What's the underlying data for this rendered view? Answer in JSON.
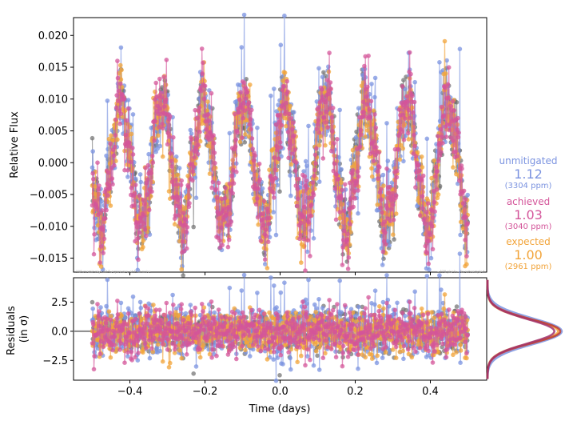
{
  "chart_data": [
    {
      "type": "scatter",
      "panel": "light-curve",
      "xlabel": "",
      "ylabel": "Relative Flux",
      "xlim": [
        -0.55,
        0.55
      ],
      "ylim": [
        -0.0172,
        0.0228
      ],
      "yticks": [
        -0.015,
        -0.01,
        -0.005,
        0.0,
        0.005,
        0.01,
        0.015,
        0.02
      ],
      "ytick_labels": [
        "−0.015",
        "−0.010",
        "−0.005",
        "0.000",
        "0.005",
        "0.010",
        "0.015",
        "0.020"
      ],
      "signal": {
        "amplitude": 0.0095,
        "period_days": 0.1087,
        "cadence_days": 0.00139,
        "t_start": -0.5,
        "t_end": 0.5
      },
      "series": [
        {
          "name": "unmitigated",
          "color": "#7b93e0",
          "noise_ppm": 3304
        },
        {
          "name": "expected",
          "color": "#f2a43a",
          "noise_ppm": 2961
        },
        {
          "name": "achieved",
          "color": "#d4559a",
          "noise_ppm": 3040
        }
      ],
      "notes": {
        "left": "108 cosmic rays hit 5 exposures, at 1.6σ noise",
        "right": "– 120 pixels – 5x subsampled"
      }
    },
    {
      "type": "scatter",
      "panel": "residuals",
      "xlabel": "Time (days)",
      "ylabel": [
        "Residuals",
        "(in σ)"
      ],
      "xlim": [
        -0.55,
        0.55
      ],
      "ylim": [
        -4.2,
        4.6
      ],
      "xticks": [
        -0.4,
        -0.2,
        0.0,
        0.2,
        0.4
      ],
      "xtick_labels": [
        "−0.4",
        "−0.2",
        "0.0",
        "0.2",
        "0.4"
      ],
      "yticks": [
        -2.5,
        0.0,
        2.5
      ],
      "ytick_labels": [
        "−2.5",
        "0.0",
        "2.5"
      ],
      "histogram": "gaussian residual distributions drawn sideways on the right, one per series"
    }
  ],
  "legend": [
    {
      "label": "unmitigated",
      "value": "1.12",
      "ppm": "(3304 ppm)",
      "color": "#7b93e0"
    },
    {
      "label": "achieved",
      "value": "1.03",
      "ppm": "(3040 ppm)",
      "color": "#d4559a"
    },
    {
      "label": "expected",
      "value": "1.00",
      "ppm": "(2961 ppm)",
      "color": "#f2a43a"
    }
  ]
}
